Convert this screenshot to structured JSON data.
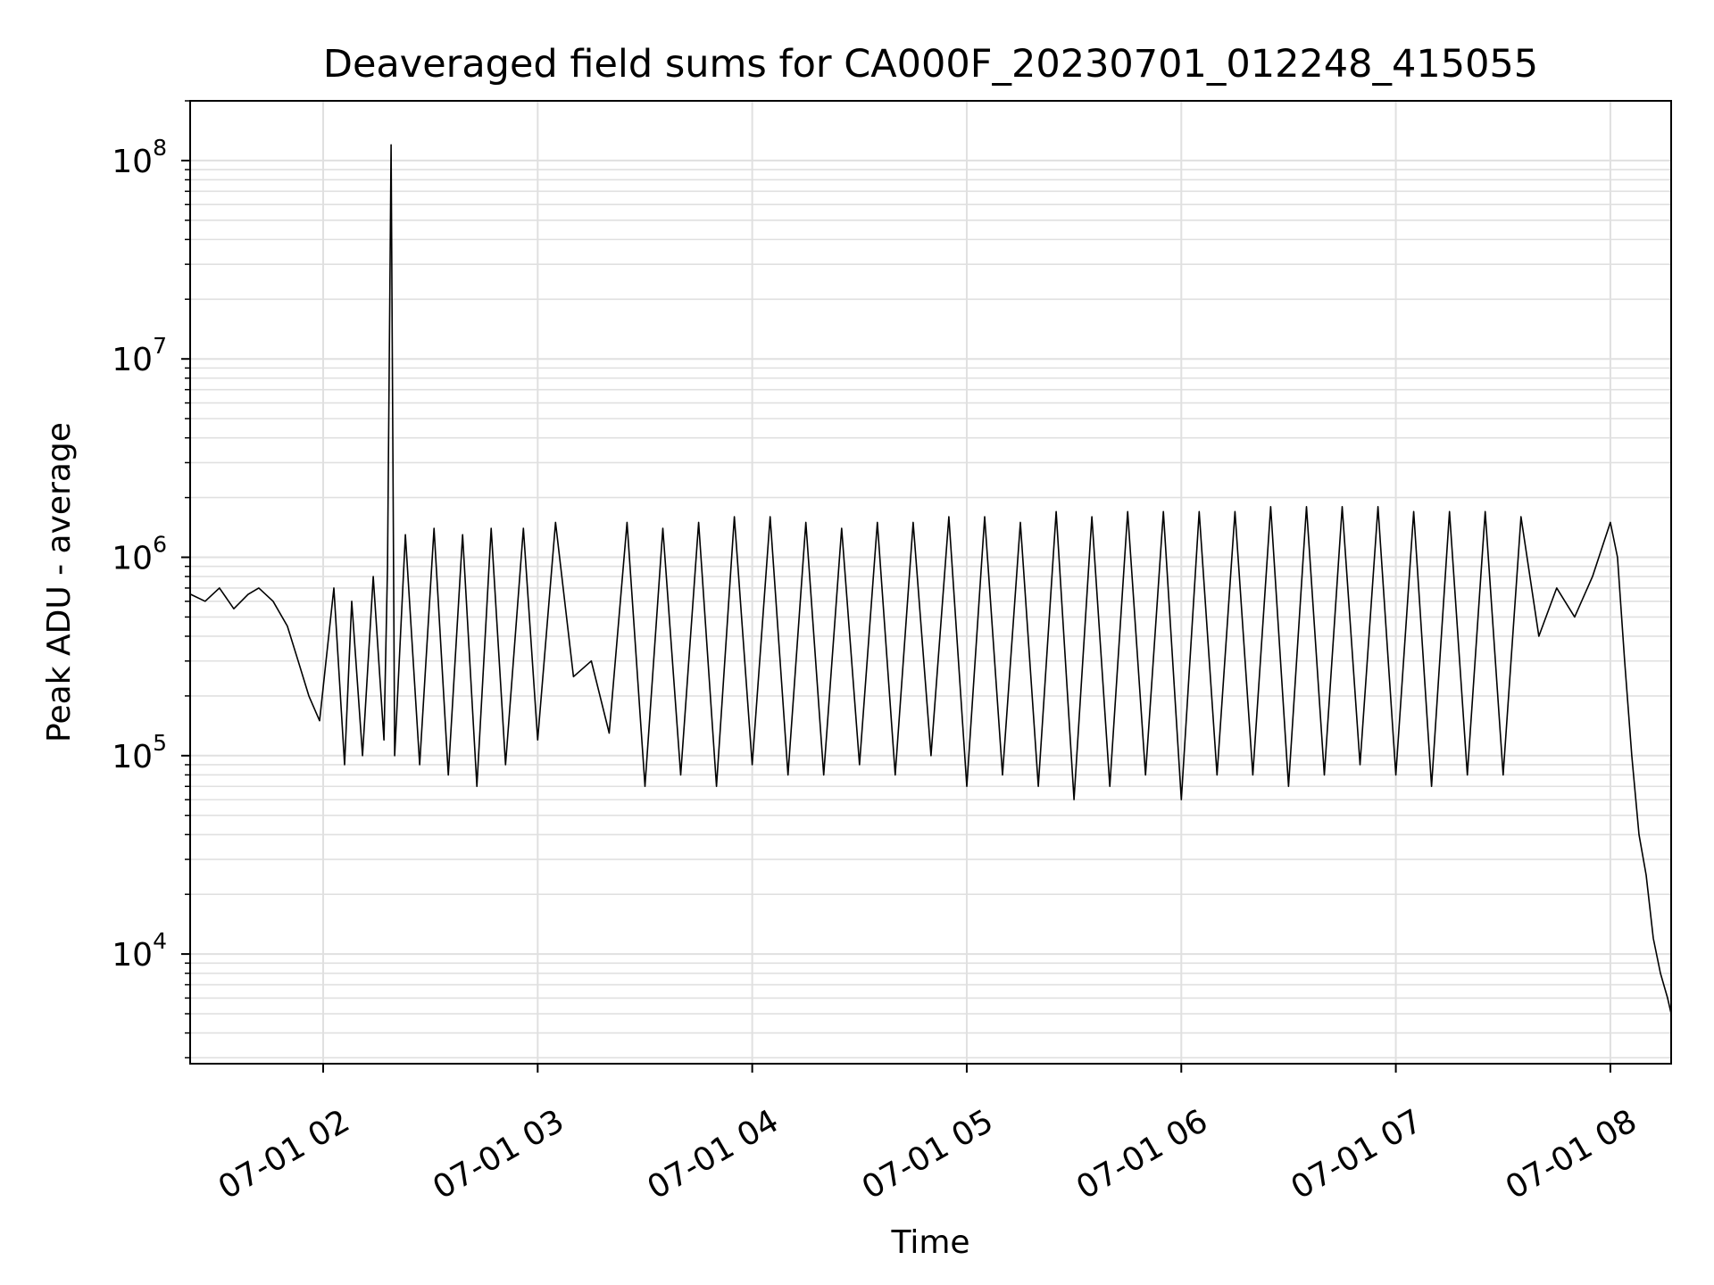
{
  "chart_data": {
    "type": "line",
    "title": "Deaveraged field sums for CA000F_20230701_012248_415055",
    "xlabel": "Time",
    "ylabel": "Peak ADU - average",
    "yscale": "log",
    "ylim": [
      2800,
      200000000
    ],
    "xlim": [
      "2023-07-01 01:22:48",
      "2023-07-01 08:17:00"
    ],
    "grid": true,
    "line_color": "#000000",
    "grid_color": "#e0e0e0",
    "x_ticks": [
      {
        "label": "07-01 02",
        "time": "2023-07-01 02:00"
      },
      {
        "label": "07-01 03",
        "time": "2023-07-01 03:00"
      },
      {
        "label": "07-01 04",
        "time": "2023-07-01 04:00"
      },
      {
        "label": "07-01 05",
        "time": "2023-07-01 05:00"
      },
      {
        "label": "07-01 06",
        "time": "2023-07-01 06:00"
      },
      {
        "label": "07-01 07",
        "time": "2023-07-01 07:00"
      },
      {
        "label": "07-01 08",
        "time": "2023-07-01 08:00"
      }
    ],
    "y_ticks": [
      {
        "base": "10",
        "exp": "4",
        "value": 10000
      },
      {
        "base": "10",
        "exp": "5",
        "value": 100000
      },
      {
        "base": "10",
        "exp": "6",
        "value": 1000000
      },
      {
        "base": "10",
        "exp": "7",
        "value": 10000000
      },
      {
        "base": "10",
        "exp": "8",
        "value": 100000000
      }
    ],
    "series": [
      {
        "x": [
          "2023-07-01 01:23",
          "2023-07-01 01:27",
          "2023-07-01 01:31",
          "2023-07-01 01:35",
          "2023-07-01 01:39",
          "2023-07-01 01:42",
          "2023-07-01 01:46",
          "2023-07-01 01:50",
          "2023-07-01 01:53",
          "2023-07-01 01:56",
          "2023-07-01 01:59",
          "2023-07-01 02:03",
          "2023-07-01 02:06",
          "2023-07-01 02:08",
          "2023-07-01 02:11",
          "2023-07-01 02:14",
          "2023-07-01 02:17",
          "2023-07-01 02:18",
          "2023-07-01 02:19",
          "2023-07-01 02:20",
          "2023-07-01 02:23",
          "2023-07-01 02:27",
          "2023-07-01 02:31",
          "2023-07-01 02:35",
          "2023-07-01 02:39",
          "2023-07-01 02:43",
          "2023-07-01 02:47",
          "2023-07-01 02:51",
          "2023-07-01 02:56",
          "2023-07-01 03:00",
          "2023-07-01 03:05",
          "2023-07-01 03:10",
          "2023-07-01 03:15",
          "2023-07-01 03:20",
          "2023-07-01 03:25",
          "2023-07-01 03:30",
          "2023-07-01 03:35",
          "2023-07-01 03:40",
          "2023-07-01 03:45",
          "2023-07-01 03:50",
          "2023-07-01 03:55",
          "2023-07-01 04:00",
          "2023-07-01 04:05",
          "2023-07-01 04:10",
          "2023-07-01 04:15",
          "2023-07-01 04:20",
          "2023-07-01 04:25",
          "2023-07-01 04:30",
          "2023-07-01 04:35",
          "2023-07-01 04:40",
          "2023-07-01 04:45",
          "2023-07-01 04:50",
          "2023-07-01 04:55",
          "2023-07-01 05:00",
          "2023-07-01 05:05",
          "2023-07-01 05:10",
          "2023-07-01 05:15",
          "2023-07-01 05:20",
          "2023-07-01 05:25",
          "2023-07-01 05:30",
          "2023-07-01 05:35",
          "2023-07-01 05:40",
          "2023-07-01 05:45",
          "2023-07-01 05:50",
          "2023-07-01 05:55",
          "2023-07-01 06:00",
          "2023-07-01 06:05",
          "2023-07-01 06:10",
          "2023-07-01 06:15",
          "2023-07-01 06:20",
          "2023-07-01 06:25",
          "2023-07-01 06:30",
          "2023-07-01 06:35",
          "2023-07-01 06:40",
          "2023-07-01 06:45",
          "2023-07-01 06:50",
          "2023-07-01 06:55",
          "2023-07-01 07:00",
          "2023-07-01 07:05",
          "2023-07-01 07:10",
          "2023-07-01 07:15",
          "2023-07-01 07:20",
          "2023-07-01 07:25",
          "2023-07-01 07:30",
          "2023-07-01 07:35",
          "2023-07-01 07:40",
          "2023-07-01 07:45",
          "2023-07-01 07:50",
          "2023-07-01 07:55",
          "2023-07-01 08:00",
          "2023-07-01 08:02",
          "2023-07-01 08:04",
          "2023-07-01 08:06",
          "2023-07-01 08:08",
          "2023-07-01 08:10",
          "2023-07-01 08:12",
          "2023-07-01 08:14",
          "2023-07-01 08:16",
          "2023-07-01 08:17"
        ],
        "y": [
          650000,
          600000,
          700000,
          550000,
          650000,
          700000,
          600000,
          450000,
          300000,
          200000,
          150000,
          700000,
          90000,
          600000,
          100000,
          800000,
          120000,
          900000,
          120000000,
          100000,
          1300000,
          90000,
          1400000,
          80000,
          1300000,
          70000,
          1400000,
          90000,
          1400000,
          120000,
          1500000,
          250000,
          300000,
          130000,
          1500000,
          70000,
          1400000,
          80000,
          1500000,
          70000,
          1600000,
          90000,
          1600000,
          80000,
          1500000,
          80000,
          1400000,
          90000,
          1500000,
          80000,
          1500000,
          100000,
          1600000,
          70000,
          1600000,
          80000,
          1500000,
          70000,
          1700000,
          60000,
          1600000,
          70000,
          1700000,
          80000,
          1700000,
          60000,
          1700000,
          80000,
          1700000,
          80000,
          1800000,
          70000,
          1800000,
          80000,
          1800000,
          90000,
          1800000,
          80000,
          1700000,
          70000,
          1700000,
          80000,
          1700000,
          80000,
          1600000,
          400000,
          700000,
          500000,
          800000,
          1500000,
          1000000,
          300000,
          100000,
          40000,
          25000,
          12000,
          8000,
          6000,
          5000
        ]
      }
    ]
  }
}
